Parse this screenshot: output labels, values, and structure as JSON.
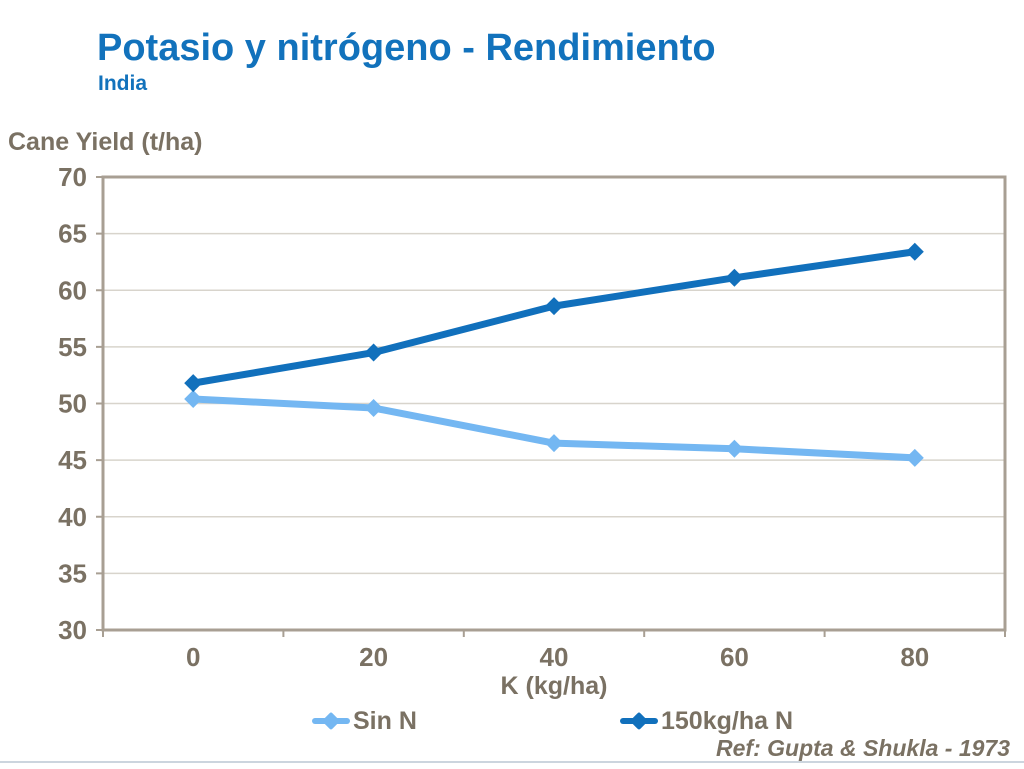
{
  "header": {
    "title": "Potasio y nitrógeno - Rendimiento",
    "subtitle": "India"
  },
  "colors": {
    "title": "#1272BC",
    "subtitle": "#1272BC",
    "axis_text": "#7A7163",
    "frame": "#A89F93",
    "grid": "#D8D4CC",
    "bottom_rule": "#CCD5DE"
  },
  "chart_data": {
    "type": "line",
    "title": "",
    "xlabel": "K (kg/ha)",
    "ylabel": "Cane Yield (t/ha)",
    "categories": [
      "0",
      "20",
      "40",
      "60",
      "80"
    ],
    "x": [
      0,
      20,
      40,
      60,
      80
    ],
    "ylim": [
      30,
      70
    ],
    "yticks": [
      30,
      35,
      40,
      45,
      50,
      55,
      60,
      65,
      70
    ],
    "grid": true,
    "marker": "diamond",
    "legend_position": "bottom",
    "series": [
      {
        "name": "Sin N",
        "color": "#74B7F2",
        "values": [
          50.4,
          49.6,
          46.5,
          46.0,
          45.2
        ]
      },
      {
        "name": "150kg/ha N",
        "color": "#1170BC",
        "values": [
          51.8,
          54.5,
          58.6,
          61.1,
          63.4
        ]
      }
    ]
  },
  "footer": {
    "reference": "Ref:  Gupta & Shukla - 1973"
  }
}
